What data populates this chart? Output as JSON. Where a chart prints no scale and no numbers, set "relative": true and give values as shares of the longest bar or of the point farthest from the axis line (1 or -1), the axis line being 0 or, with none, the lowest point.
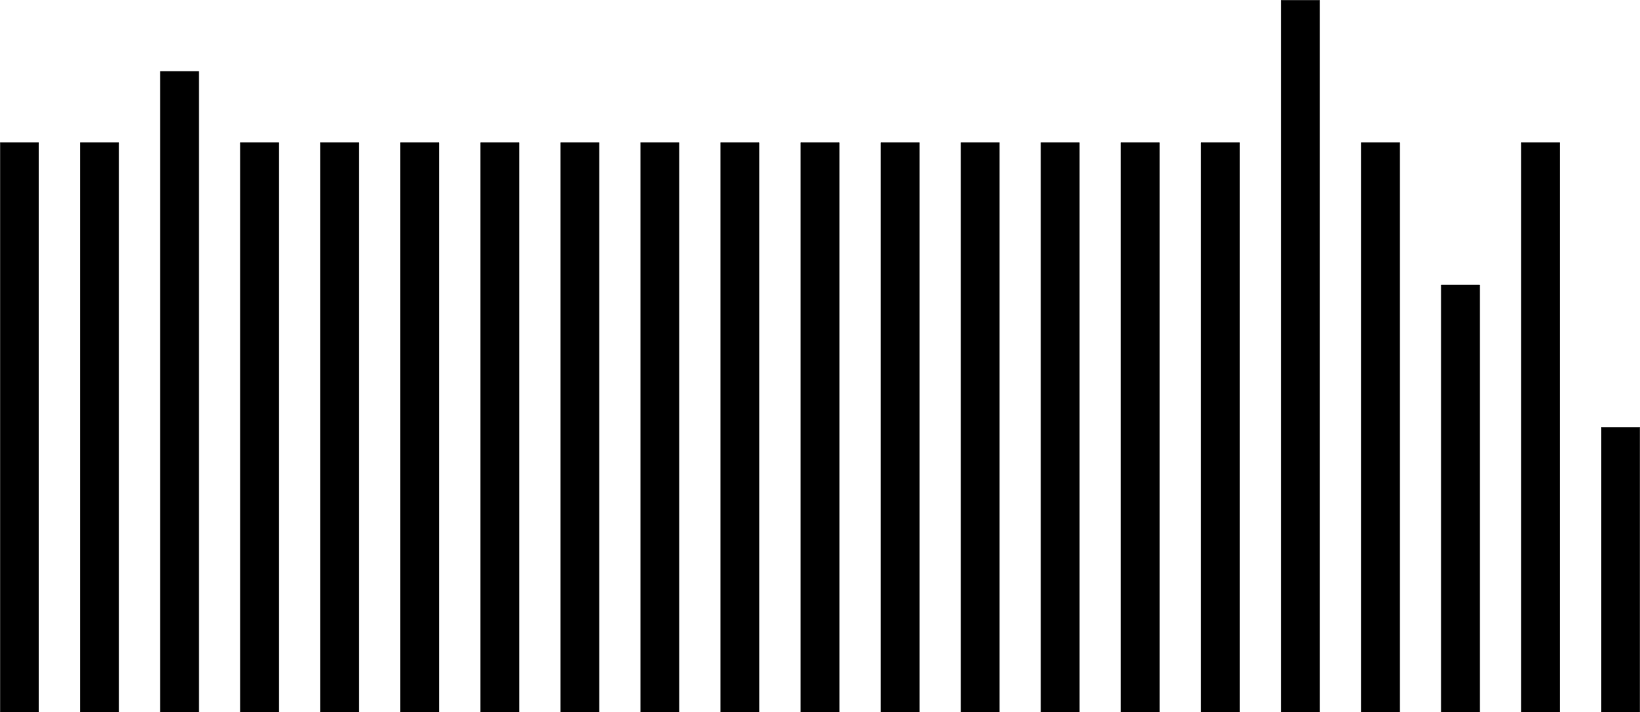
{
  "chart_data": {
    "type": "bar",
    "relative": true,
    "categories": [
      null,
      null,
      null,
      null,
      null,
      null,
      null,
      null,
      null,
      null,
      null,
      null,
      null,
      null,
      null,
      null,
      null,
      null,
      null,
      null,
      null
    ],
    "values": [
      0.8,
      0.8,
      0.9,
      0.8,
      0.8,
      0.8,
      0.8,
      0.8,
      0.8,
      0.8,
      0.8,
      0.8,
      0.8,
      0.8,
      0.8,
      0.8,
      1,
      0.8,
      0.6,
      0.8,
      0.4
    ],
    "color": "#000000"
  }
}
